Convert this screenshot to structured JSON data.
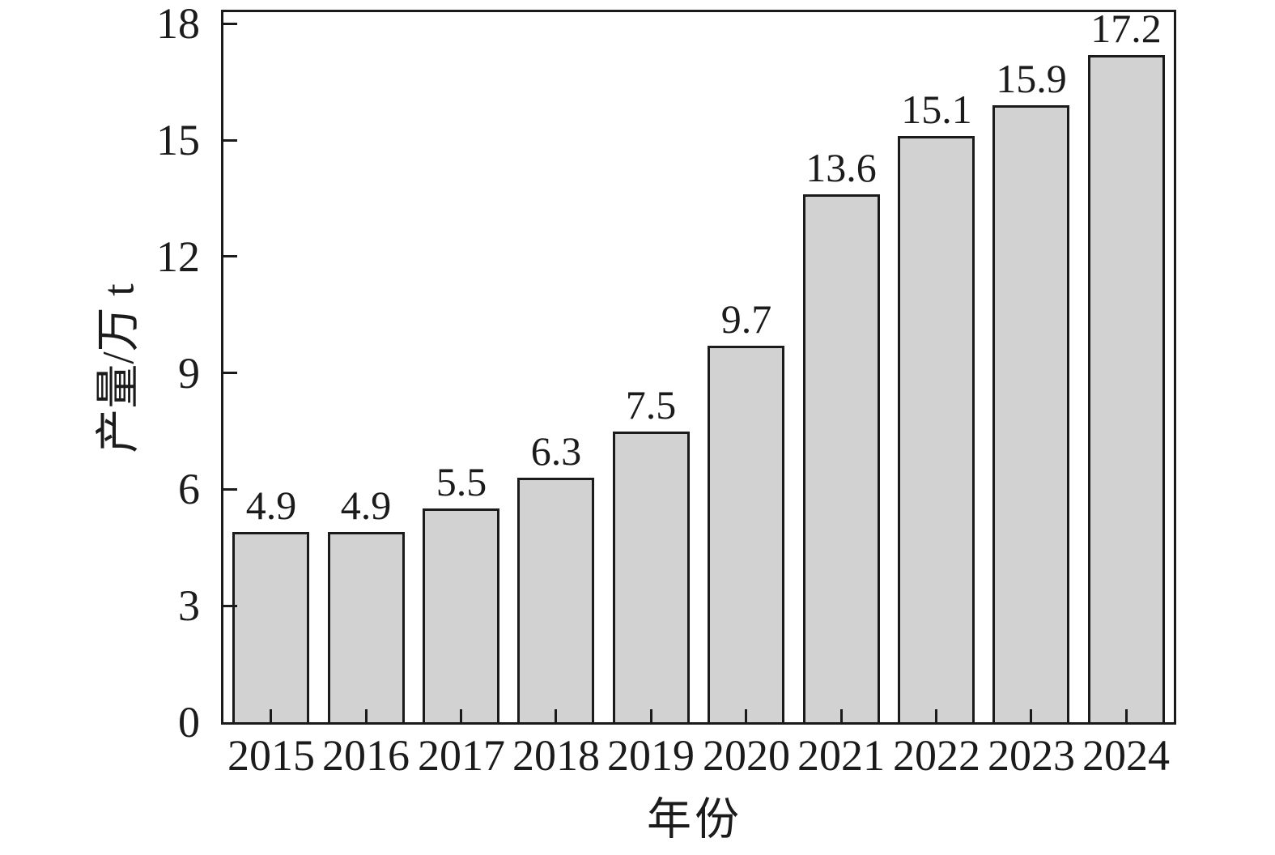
{
  "chart_data": {
    "type": "bar",
    "categories": [
      "2015",
      "2016",
      "2017",
      "2018",
      "2019",
      "2020",
      "2021",
      "2022",
      "2023",
      "2024"
    ],
    "values": [
      4.9,
      4.9,
      5.5,
      6.3,
      7.5,
      9.7,
      13.6,
      15.1,
      15.9,
      17.2
    ],
    "bar_labels": [
      "4.9",
      "4.9",
      "5.5",
      "6.3",
      "7.5",
      "9.7",
      "13.6",
      "15.1",
      "15.9",
      "17.2"
    ],
    "title": "",
    "xlabel": "年份",
    "ylabel": "产量/万 t",
    "ylim": [
      0,
      18.3
    ],
    "yticks": [
      0,
      3,
      6,
      9,
      12,
      15,
      18
    ],
    "ytick_labels": [
      "0",
      "3",
      "6",
      "9",
      "12",
      "15",
      "18"
    ],
    "grid": false,
    "legend": null,
    "layout": {
      "frame": "full-box",
      "tick_direction": "in"
    },
    "colors": {
      "background": "#ffffff",
      "bar_fill": "#d2d2d2",
      "bar_border": "#1b1b1b",
      "axis": "#1b1b1b",
      "text": "#1b1b1b"
    }
  }
}
